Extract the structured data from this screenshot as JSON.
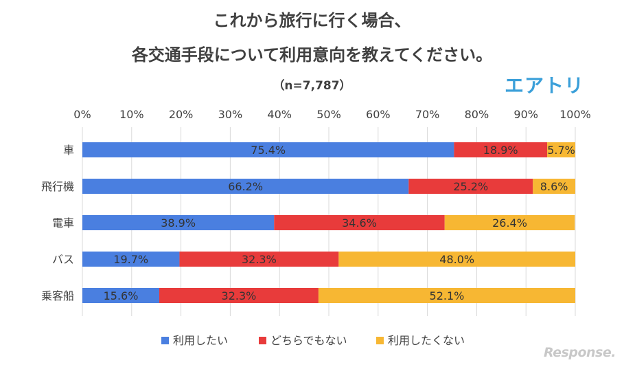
{
  "chart_data": {
    "type": "bar",
    "orientation": "horizontal",
    "stacked": true,
    "title": "これから旅行に行く場合、",
    "subtitle": "各交通手段について利用意向を教えてください。",
    "note": "（n=7,787）",
    "categories": [
      "車",
      "飛行機",
      "電車",
      "バス",
      "乗客船"
    ],
    "series": [
      {
        "name": "利用したい",
        "color": "#4a7fe0",
        "values": [
          75.4,
          66.2,
          38.9,
          19.7,
          15.6
        ],
        "labels": [
          "75.4%",
          "66.2%",
          "38.9%",
          "19.7%",
          "15.6%"
        ]
      },
      {
        "name": "どちらでもない",
        "color": "#e83b3b",
        "values": [
          18.9,
          25.2,
          34.6,
          32.3,
          32.3
        ],
        "labels": [
          "18.9%",
          "25.2%",
          "34.6%",
          "32.3%",
          "32.3%"
        ]
      },
      {
        "name": "利用したくない",
        "color": "#f7b733",
        "values": [
          5.7,
          8.6,
          26.4,
          48.0,
          52.1
        ],
        "labels": [
          "5.7%",
          "8.6%",
          "26.4%",
          "48.0%",
          "52.1%"
        ]
      }
    ],
    "xticks": [
      "0%",
      "10%",
      "20%",
      "30%",
      "40%",
      "50%",
      "60%",
      "70%",
      "80%",
      "90%",
      "100%"
    ],
    "xlim": [
      0,
      100
    ],
    "grid": "vertical",
    "legend_position": "bottom"
  },
  "brand": "エアトリ",
  "watermark": "Response."
}
